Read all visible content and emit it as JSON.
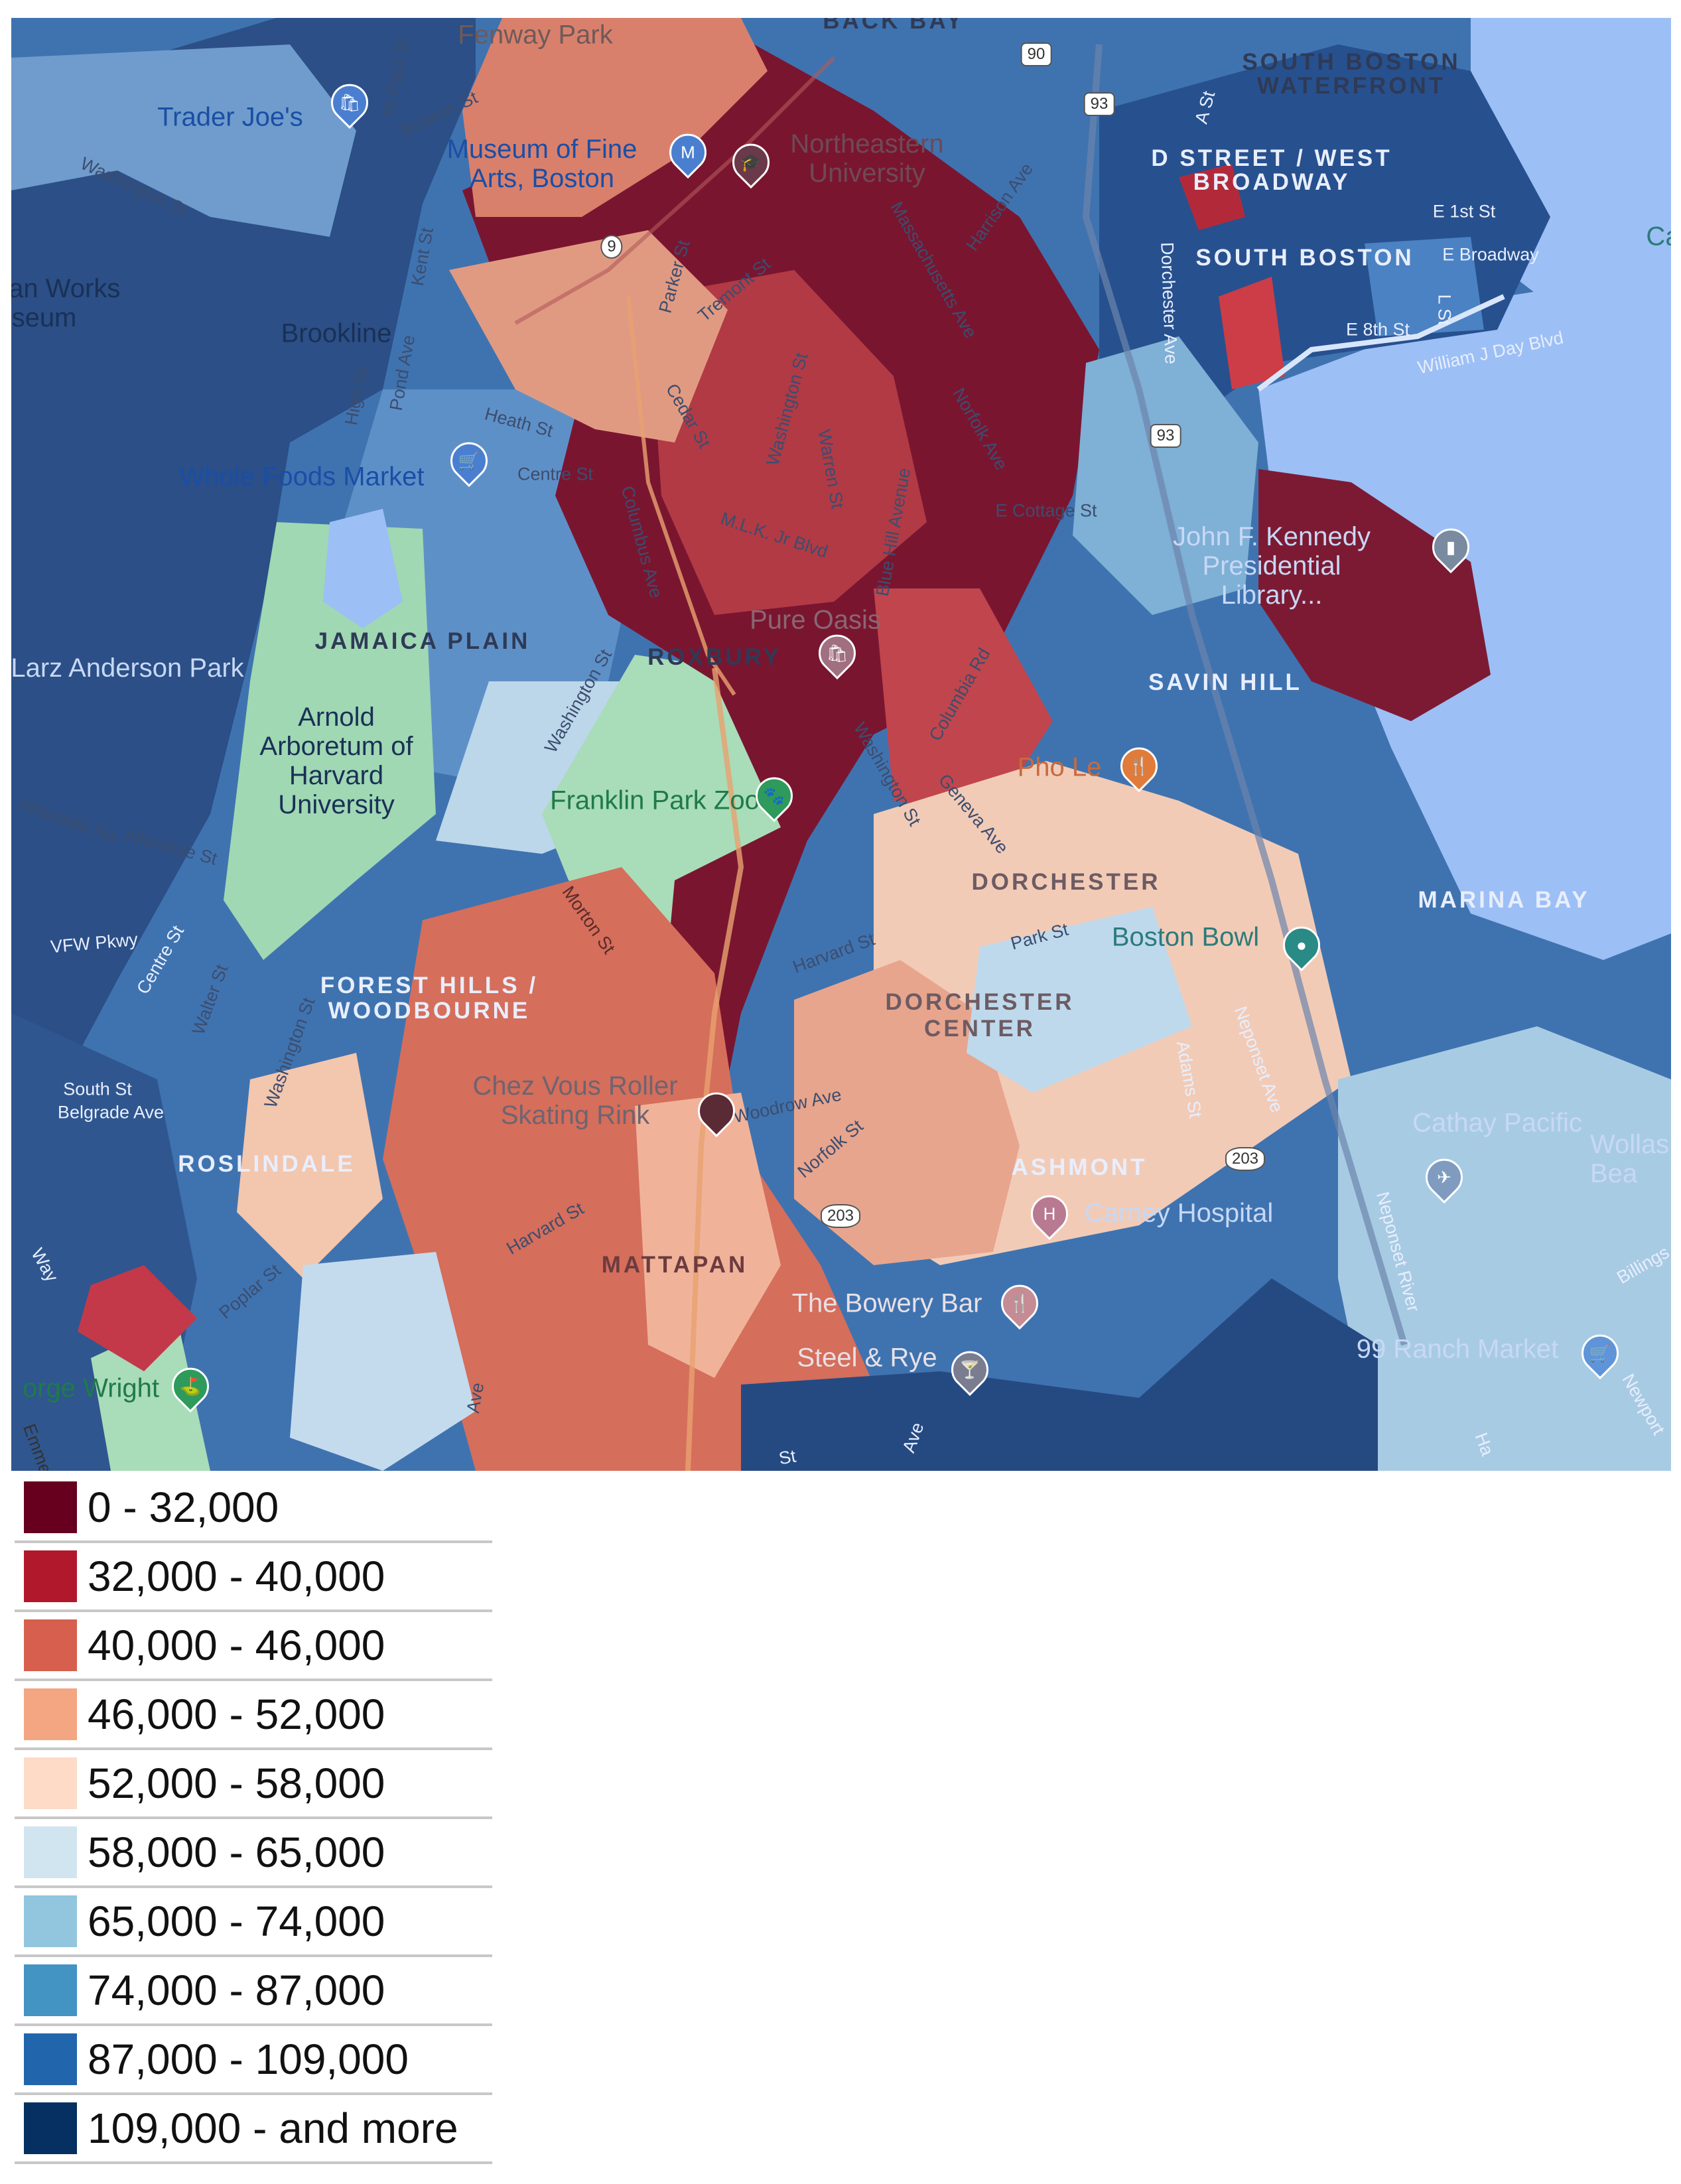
{
  "legend": {
    "items": [
      {
        "label": "0 - 32,000",
        "color": "#67001f"
      },
      {
        "label": "32,000 - 40,000",
        "color": "#b2182b"
      },
      {
        "label": "40,000 - 46,000",
        "color": "#d6604d"
      },
      {
        "label": "46,000 - 52,000",
        "color": "#f4a582"
      },
      {
        "label": "52,000 - 58,000",
        "color": "#fddbc7"
      },
      {
        "label": "58,000 - 65,000",
        "color": "#d1e5f0"
      },
      {
        "label": "65,000 - 74,000",
        "color": "#92c5de"
      },
      {
        "label": "74,000 - 87,000",
        "color": "#4393c3"
      },
      {
        "label": "87,000 - 109,000",
        "color": "#2166ac"
      },
      {
        "label": "109,000 - and more",
        "color": "#053061"
      }
    ]
  },
  "map": {
    "water_color": "#9cbff6",
    "park_color": "#9fd8b3",
    "neighborhoods": {
      "south_boston_waterfront": "SOUTH BOSTON WATERFRONT",
      "d_street_west_broadway": "D STREET / WEST BROADWAY",
      "south_boston": "SOUTH BOSTON",
      "jamaica_plain": "JAMAICA PLAIN",
      "roxbury": "ROXBURY",
      "savin_hill": "SAVIN HILL",
      "dorchester": "DORCHESTER",
      "marina_bay": "MARINA BAY",
      "forest_hills_woodbourne": "FOREST HILLS / WOODBOURNE",
      "dorchester_center": "DORCHESTER CENTER",
      "roslindale": "ROSLINDALE",
      "ashmont": "ASHMONT",
      "mattapan": "MATTAPAN",
      "back_bay": "BACK BAY"
    },
    "places": {
      "fenway_park": "Fenway Park",
      "trader_joes": "Trader Joe's",
      "museum_of_fine_arts": "Museum of Fine Arts, Boston",
      "northeastern": "Northeastern University",
      "politan_works": "olitan Works Museum",
      "brookline": "Brookline",
      "whole_foods": "Whole Foods Market",
      "jfk_library": "John F. Kennedy Presidential Library...",
      "larz_anderson": "Larz Anderson Park",
      "pure_oasis": "Pure Oasis",
      "arnold_arboretum": "Arnold Arboretum of Harvard University",
      "franklin_park_zoo": "Franklin Park Zoo",
      "pho_le": "Pho Le",
      "boston_bowl": "Boston Bowl",
      "chez_vous": "Chez Vous Roller Skating Rink",
      "cathay_pacific": "Cathay Pacific",
      "wollaston": "Wollas Bea",
      "carney_hospital": "Carney Hospital",
      "bowery_bar": "The Bowery Bar",
      "steel_rye": "Steel & Rye",
      "ranch_market": "99 Ranch Market",
      "george_wright": "orge Wright",
      "ca": "Ca"
    },
    "streets": {
      "beacon": "Beacon St",
      "washington_nw": "Washington St",
      "parker": "Parker St",
      "tremont": "Tremont St",
      "massachusetts": "Massachusetts Ave",
      "harrison": "Harrison Ave",
      "e1st": "E 1st St",
      "ebroadway": "E Broadway",
      "e8th": "E 8th St",
      "william_day": "William J Day Blvd",
      "dorchester_ave": "Dorchester Ave",
      "l_st": "L St",
      "a_st": "A St",
      "kent": "Kent St",
      "high": "High St",
      "pond": "Pond Ave",
      "heath": "Heath St",
      "centre": "Centre St",
      "cedar": "Cedar St",
      "washington_mid": "Washington St",
      "warren": "Warren St",
      "norfolk_ave": "Norfolk Ave",
      "columbus": "Columbus Ave",
      "mlk": "M.L.K. Jr Blvd",
      "blue_hill": "Blue Hill Avenue",
      "e_cottage": "E Cottage St",
      "columbia": "Columbia Rd",
      "washington_jp": "Washington St",
      "washington_dor": "Washington St",
      "geneva": "Geneva Ave",
      "allandale_rd": "Allandale Rd",
      "allandale_st": "Allandale St",
      "vfw": "VFW Pkwy",
      "centre_st2": "Centre St",
      "walter": "Walter St",
      "washington_ros": "Washington St",
      "morton": "Morton St",
      "harvard": "Harvard St",
      "park": "Park St",
      "woodrow": "Woodrow Ave",
      "norfolk_st": "Norfolk St",
      "harvard2": "Harvard St",
      "adams": "Adams St",
      "neponset": "Neponset Ave",
      "south": "South St",
      "belgrade": "Belgrade Ave",
      "poplar": "Poplar St",
      "billings": "Billings",
      "newport": "Newport",
      "neponset_river": "Neponset River",
      "hallet": "Ha",
      "emmel": "Emmel",
      "way": "Way",
      "ave": "Ave",
      "ave2": "Ave",
      "st": "St",
      "st_paul": "St Paul St"
    },
    "shields": {
      "i90": "90",
      "i93": "93",
      "r9": "9",
      "i93b": "93",
      "r203": "203",
      "r203b": "203"
    },
    "icons": [
      "shopping-icon",
      "museum-icon",
      "school-icon",
      "zoo-icon",
      "restaurant-icon",
      "bowling-icon",
      "airline-icon",
      "hospital-icon",
      "bar-icon",
      "library-icon",
      "golf-icon",
      "transit-icon"
    ]
  }
}
